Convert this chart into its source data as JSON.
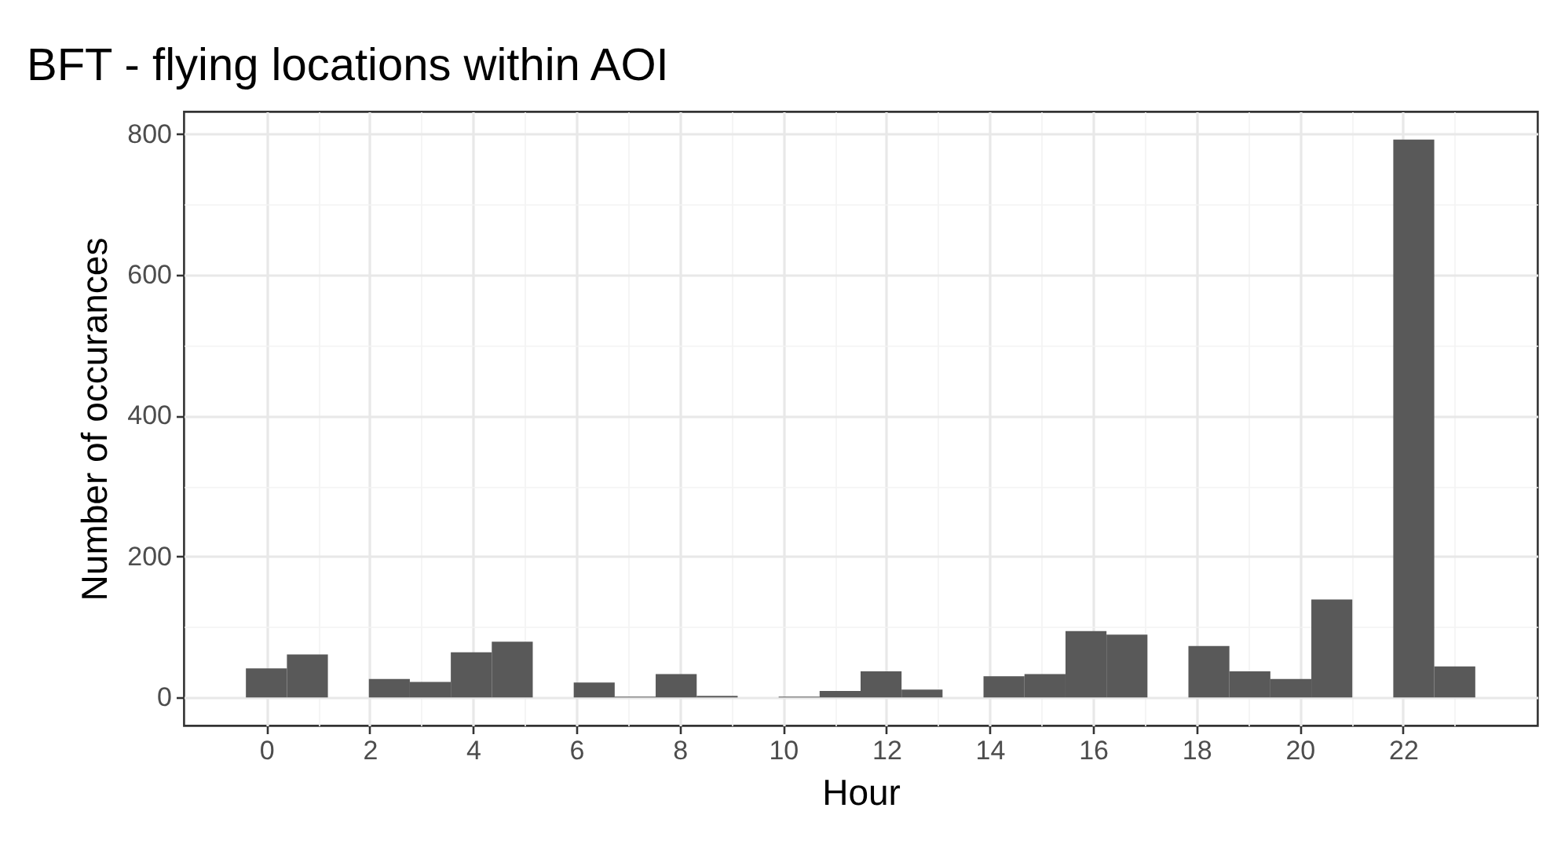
{
  "chart_data": {
    "type": "histogram",
    "title": "BFT - flying locations within AOI",
    "xlabel": "Hour",
    "ylabel": "Number of occurances",
    "bins": [
      -0.397,
      0.397,
      1.19,
      1.983,
      2.776,
      3.569,
      4.362,
      5.155,
      5.948,
      6.741,
      7.534,
      8.328,
      9.121,
      9.914,
      10.707,
      11.5,
      12.293,
      13.086,
      13.879,
      14.672,
      15.466,
      16.259,
      17.052,
      17.845,
      18.638,
      19.431,
      20.224,
      21.017,
      21.81,
      22.603,
      23.397
    ],
    "values": [
      41,
      61,
      0,
      26,
      22,
      64,
      79,
      0,
      21,
      1,
      33,
      2,
      0,
      1,
      9,
      37,
      11,
      0,
      30,
      33,
      94,
      89,
      0,
      73,
      37,
      26,
      139,
      0,
      792,
      44
    ],
    "color": "#595959",
    "xlim": [
      -1.6,
      24.6
    ],
    "ylim": [
      -40,
      832
    ],
    "xticks": [
      0,
      {
        "value": 1,
        "label": null
      },
      2,
      {
        "value": 3,
        "label": null
      },
      4,
      {
        "value": 5,
        "label": null
      },
      6,
      {
        "value": 7,
        "label": null
      },
      8,
      {
        "value": 9,
        "label": null
      },
      10,
      {
        "value": 11,
        "label": null
      },
      12,
      {
        "value": 13,
        "label": null
      },
      14,
      {
        "value": 15,
        "label": null
      },
      16,
      {
        "value": 17,
        "label": null
      },
      18,
      {
        "value": 19,
        "label": null
      },
      20,
      {
        "value": 21,
        "label": null
      },
      22,
      {
        "value": 23,
        "label": null
      }
    ],
    "yticks": [
      0,
      {
        "value": 100,
        "label": null
      },
      200,
      {
        "value": 300,
        "label": null
      },
      400,
      {
        "value": 500,
        "label": null
      },
      600,
      {
        "value": 700,
        "label": null
      },
      800
    ],
    "grid": true
  }
}
